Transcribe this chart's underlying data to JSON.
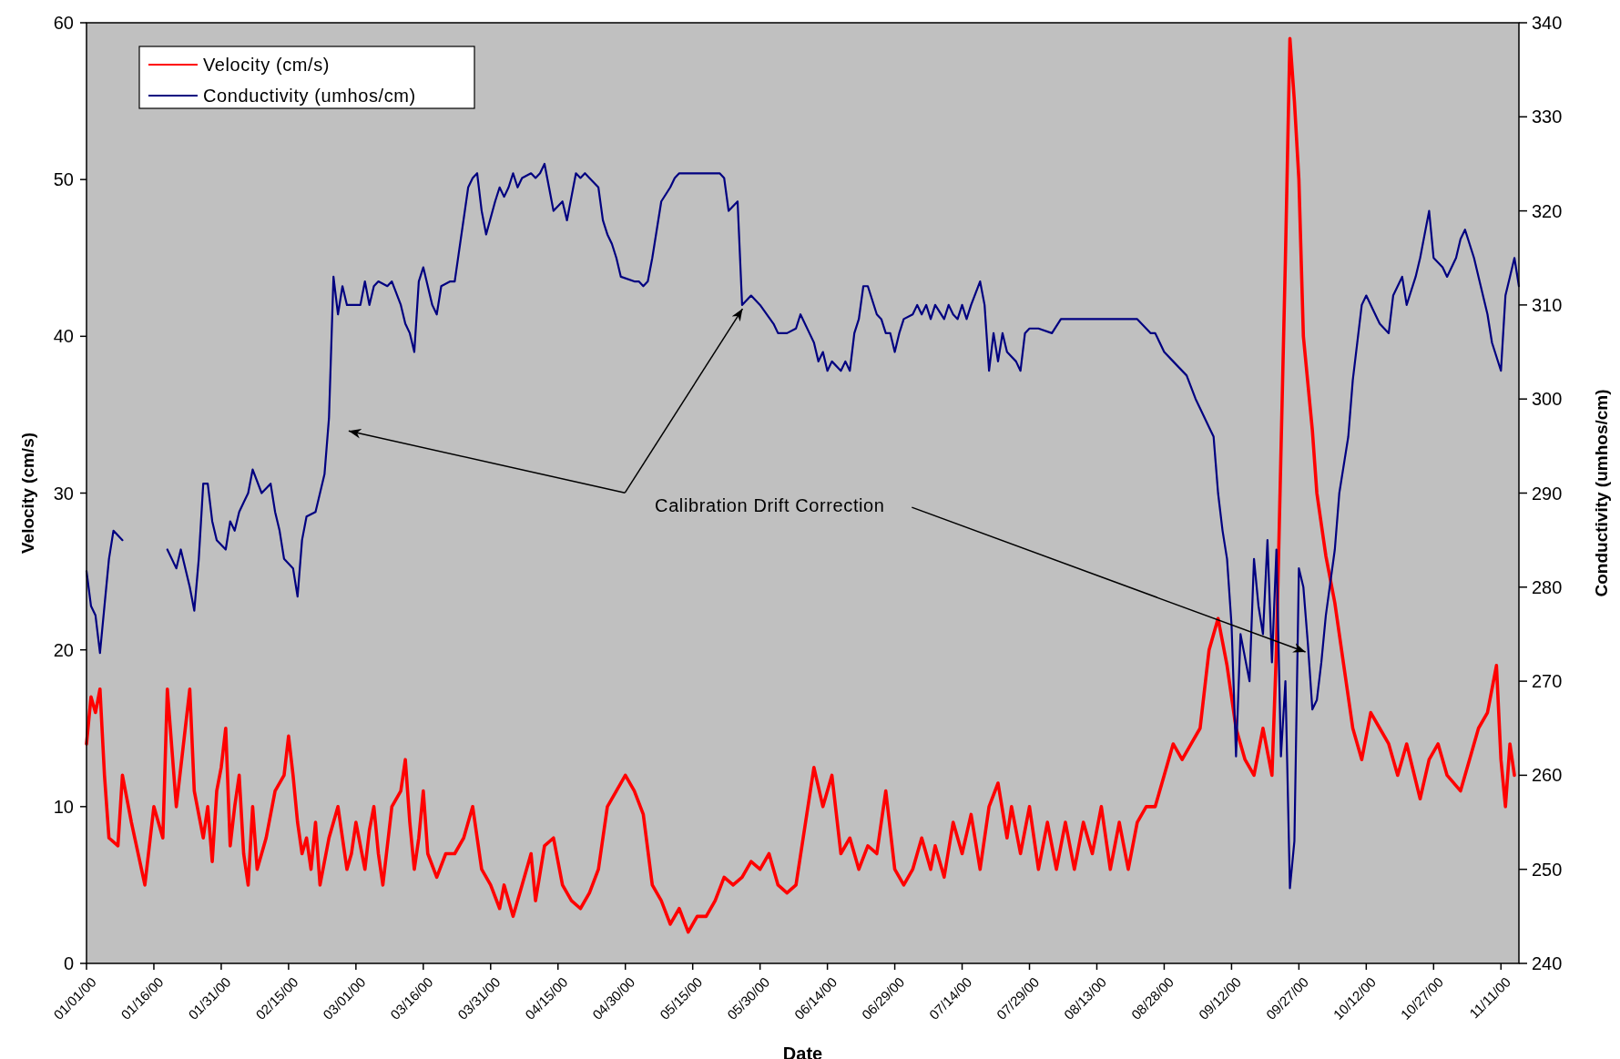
{
  "chart_data": {
    "type": "line",
    "xlabel": "Date",
    "ylabel": "Velocity (cm/s)",
    "y2label": "Conductivity (umhos/cm)",
    "annotations": [
      "Calibration Drift Correction"
    ],
    "legend": "top left",
    "grid": false,
    "marker": "none",
    "line_style": "solid",
    "xlim": [
      "2000-01-01",
      "2000-11-15"
    ],
    "xticks": [
      {
        "value": "2000-01-01",
        "label": "01/01/00"
      },
      {
        "value": "2000-01-16",
        "label": "01/16/00"
      },
      {
        "value": "2000-01-31",
        "label": "01/31/00"
      },
      {
        "value": "2000-02-15",
        "label": "02/15/00"
      },
      {
        "value": "2000-03-01",
        "label": "03/01/00"
      },
      {
        "value": "2000-03-16",
        "label": "03/16/00"
      },
      {
        "value": "2000-03-31",
        "label": "03/31/00"
      },
      {
        "value": "2000-04-15",
        "label": "04/15/00"
      },
      {
        "value": "2000-04-30",
        "label": "04/30/00"
      },
      {
        "value": "2000-05-15",
        "label": "05/15/00"
      },
      {
        "value": "2000-05-30",
        "label": "05/30/00"
      },
      {
        "value": "2000-06-14",
        "label": "06/14/00"
      },
      {
        "value": "2000-06-29",
        "label": "06/29/00"
      },
      {
        "value": "2000-07-14",
        "label": "07/14/00"
      },
      {
        "value": "2000-07-29",
        "label": "07/29/00"
      },
      {
        "value": "2000-08-13",
        "label": "08/13/00"
      },
      {
        "value": "2000-08-28",
        "label": "08/28/00"
      },
      {
        "value": "2000-09-12",
        "label": "09/12/00"
      },
      {
        "value": "2000-09-27",
        "label": "09/27/00"
      },
      {
        "value": "2000-10-12",
        "label": "10/12/00"
      },
      {
        "value": "2000-10-27",
        "label": "10/27/00"
      },
      {
        "value": "2000-11-11",
        "label": "11/11/00"
      }
    ],
    "ylim": [
      0,
      60
    ],
    "yticks": [
      0,
      10,
      20,
      30,
      40,
      50,
      60
    ],
    "y2lim": [
      240,
      340
    ],
    "y2ticks": [
      240,
      250,
      260,
      270,
      280,
      290,
      300,
      310,
      320,
      330,
      340
    ],
    "series": [
      {
        "name": "Velocity (cm/s)",
        "color": "#ff0000",
        "x": [
          "2000-01-01",
          "2000-01-02",
          "2000-01-03",
          "2000-01-04",
          "2000-01-05",
          "2000-01-06",
          "2000-01-08",
          "2000-01-09",
          "2000-01-11",
          "2000-01-14",
          "2000-01-16",
          "2000-01-18",
          "2000-01-19",
          "2000-01-21",
          "2000-01-23",
          "2000-01-24",
          "2000-01-25",
          "2000-01-27",
          "2000-01-28",
          "2000-01-29",
          "2000-01-30",
          "2000-01-31",
          "2000-02-01",
          "2000-02-02",
          "2000-02-03",
          "2000-02-04",
          "2000-02-05",
          "2000-02-06",
          "2000-02-07",
          "2000-02-08",
          "2000-02-10",
          "2000-02-12",
          "2000-02-14",
          "2000-02-15",
          "2000-02-16",
          "2000-02-17",
          "2000-02-18",
          "2000-02-19",
          "2000-02-20",
          "2000-02-21",
          "2000-02-22",
          "2000-02-24",
          "2000-02-26",
          "2000-02-28",
          "2000-02-29",
          "2000-03-01",
          "2000-03-03",
          "2000-03-04",
          "2000-03-05",
          "2000-03-06",
          "2000-03-07",
          "2000-03-09",
          "2000-03-11",
          "2000-03-12",
          "2000-03-13",
          "2000-03-14",
          "2000-03-15",
          "2000-03-16",
          "2000-03-17",
          "2000-03-19",
          "2000-03-21",
          "2000-03-23",
          "2000-03-25",
          "2000-03-27",
          "2000-03-28",
          "2000-03-29",
          "2000-03-31",
          "2000-04-02",
          "2000-04-03",
          "2000-04-05",
          "2000-04-07",
          "2000-04-09",
          "2000-04-10",
          "2000-04-12",
          "2000-04-14",
          "2000-04-16",
          "2000-04-18",
          "2000-04-20",
          "2000-04-22",
          "2000-04-24",
          "2000-04-26",
          "2000-04-28",
          "2000-04-30",
          "2000-05-02",
          "2000-05-04",
          "2000-05-06",
          "2000-05-08",
          "2000-05-10",
          "2000-05-12",
          "2000-05-14",
          "2000-05-16",
          "2000-05-18",
          "2000-05-20",
          "2000-05-22",
          "2000-05-24",
          "2000-05-26",
          "2000-05-28",
          "2000-05-30",
          "2000-06-01",
          "2000-06-03",
          "2000-06-05",
          "2000-06-07",
          "2000-06-11",
          "2000-06-13",
          "2000-06-15",
          "2000-06-17",
          "2000-06-19",
          "2000-06-21",
          "2000-06-23",
          "2000-06-25",
          "2000-06-27",
          "2000-06-29",
          "2000-07-01",
          "2000-07-03",
          "2000-07-05",
          "2000-07-07",
          "2000-07-08",
          "2000-07-10",
          "2000-07-12",
          "2000-07-14",
          "2000-07-16",
          "2000-07-18",
          "2000-07-20",
          "2000-07-22",
          "2000-07-24",
          "2000-07-25",
          "2000-07-27",
          "2000-07-29",
          "2000-07-31",
          "2000-08-02",
          "2000-08-04",
          "2000-08-06",
          "2000-08-08",
          "2000-08-10",
          "2000-08-12",
          "2000-08-14",
          "2000-08-16",
          "2000-08-18",
          "2000-08-20",
          "2000-08-22",
          "2000-08-24",
          "2000-08-26",
          "2000-08-28",
          "2000-08-30",
          "2000-09-01",
          "2000-09-03",
          "2000-09-05",
          "2000-09-07",
          "2000-09-09",
          "2000-09-11",
          "2000-09-13",
          "2000-09-15",
          "2000-09-17",
          "2000-09-19",
          "2000-09-21",
          "2000-09-22",
          "2000-09-24",
          "2000-09-25",
          "2000-09-26",
          "2000-09-27",
          "2000-09-28",
          "2000-09-30",
          "2000-10-01",
          "2000-10-03",
          "2000-10-05",
          "2000-10-07",
          "2000-10-09",
          "2000-10-11",
          "2000-10-13",
          "2000-10-15",
          "2000-10-17",
          "2000-10-19",
          "2000-10-21",
          "2000-10-24",
          "2000-10-26",
          "2000-10-28",
          "2000-10-30",
          "2000-11-02",
          "2000-11-04",
          "2000-11-06",
          "2000-11-08",
          "2000-11-10",
          "2000-11-11",
          "2000-11-12",
          "2000-11-13",
          "2000-11-14"
        ],
        "values": [
          14,
          17,
          16,
          17.5,
          12,
          8,
          7.5,
          12,
          9,
          5,
          10,
          8,
          17.5,
          10,
          15,
          17.5,
          11,
          8,
          10,
          6.5,
          11,
          12.5,
          15,
          7.5,
          10,
          12,
          7,
          5,
          10,
          6,
          8,
          11,
          12,
          14.5,
          12,
          9,
          7,
          8,
          6,
          9,
          5,
          8,
          10,
          6,
          7,
          9,
          6,
          8.5,
          10,
          7,
          5,
          10,
          11,
          13,
          9,
          6,
          8,
          11,
          7,
          5.5,
          7,
          7,
          8,
          10,
          8,
          6,
          5,
          3.5,
          5,
          3,
          5,
          7,
          4,
          7.5,
          8,
          5,
          4,
          3.5,
          4.5,
          6,
          10,
          11,
          12,
          11,
          9.5,
          5,
          4,
          2.5,
          3.5,
          2,
          3,
          3,
          4,
          5.5,
          5,
          5.5,
          6.5,
          6,
          7,
          5,
          4.5,
          5,
          12.5,
          10,
          12,
          7,
          8,
          6,
          7.5,
          7,
          11,
          6,
          5,
          6,
          8,
          6,
          7.5,
          5.5,
          9,
          7,
          9.5,
          6,
          10,
          11.5,
          8,
          10,
          7,
          10,
          6,
          9,
          6,
          9,
          6,
          9,
          7,
          10,
          6,
          9,
          6,
          9,
          10,
          10,
          12,
          14,
          13,
          14,
          15,
          20,
          22,
          19,
          15,
          13,
          12,
          15,
          12,
          20,
          45,
          59,
          55,
          50,
          40,
          34,
          30,
          26,
          23,
          19,
          15,
          13,
          16,
          15,
          14,
          12,
          14,
          10.5,
          13,
          14,
          12,
          11,
          13,
          15,
          16,
          19,
          13,
          10,
          14,
          12
        ]
      },
      {
        "name": "Conductivity (umhos/cm)",
        "color": "#000080",
        "axis": "y2",
        "x": [
          "2000-01-01",
          "2000-01-02",
          "2000-01-03",
          "2000-01-04",
          "2000-01-05",
          "2000-01-06",
          "2000-01-07",
          "2000-01-09",
          "2000-01-13",
          "2000-01-19",
          "2000-01-21",
          "2000-01-22",
          "2000-01-24",
          "2000-01-25",
          "2000-01-26",
          "2000-01-27",
          "2000-01-28",
          "2000-01-29",
          "2000-01-30",
          "2000-02-01",
          "2000-02-02",
          "2000-02-03",
          "2000-02-04",
          "2000-02-05",
          "2000-02-06",
          "2000-02-07",
          "2000-02-09",
          "2000-02-11",
          "2000-02-12",
          "2000-02-13",
          "2000-02-14",
          "2000-02-16",
          "2000-02-17",
          "2000-02-18",
          "2000-02-19",
          "2000-02-21",
          "2000-02-22",
          "2000-02-23",
          "2000-02-24",
          "2000-02-25",
          "2000-02-26",
          "2000-02-27",
          "2000-02-28",
          "2000-03-02",
          "2000-03-03",
          "2000-03-04",
          "2000-03-05",
          "2000-03-06",
          "2000-03-08",
          "2000-03-09",
          "2000-03-11",
          "2000-03-12",
          "2000-03-13",
          "2000-03-14",
          "2000-03-15",
          "2000-03-16",
          "2000-03-18",
          "2000-03-19",
          "2000-03-20",
          "2000-03-22",
          "2000-03-23",
          "2000-03-26",
          "2000-03-27",
          "2000-03-28",
          "2000-03-29",
          "2000-03-30",
          "2000-04-01",
          "2000-04-02",
          "2000-04-03",
          "2000-04-04",
          "2000-04-05",
          "2000-04-06",
          "2000-04-07",
          "2000-04-09",
          "2000-04-10",
          "2000-04-11",
          "2000-04-12",
          "2000-04-13",
          "2000-04-14",
          "2000-04-16",
          "2000-04-17",
          "2000-04-18",
          "2000-04-19",
          "2000-04-20",
          "2000-04-21",
          "2000-04-22",
          "2000-04-24",
          "2000-04-25",
          "2000-04-26",
          "2000-04-27",
          "2000-04-28",
          "2000-04-29",
          "2000-05-02",
          "2000-05-03",
          "2000-05-04",
          "2000-05-05",
          "2000-05-06",
          "2000-05-07",
          "2000-05-08",
          "2000-05-10",
          "2000-05-11",
          "2000-05-12",
          "2000-05-14",
          "2000-05-16",
          "2000-05-19",
          "2000-05-21",
          "2000-05-22",
          "2000-05-23",
          "2000-05-25",
          "2000-05-26",
          "2000-05-28",
          "2000-05-30",
          "2000-06-02",
          "2000-06-03",
          "2000-06-05",
          "2000-06-07",
          "2000-06-08",
          "2000-06-10",
          "2000-06-11",
          "2000-06-12",
          "2000-06-13",
          "2000-06-14",
          "2000-06-15",
          "2000-06-17",
          "2000-06-18",
          "2000-06-19",
          "2000-06-20",
          "2000-06-21",
          "2000-06-22",
          "2000-06-23",
          "2000-06-25",
          "2000-06-26",
          "2000-06-27",
          "2000-06-28",
          "2000-06-29",
          "2000-06-30",
          "2000-07-01",
          "2000-07-03",
          "2000-07-04",
          "2000-07-05",
          "2000-07-06",
          "2000-07-07",
          "2000-07-08",
          "2000-07-10",
          "2000-07-11",
          "2000-07-12",
          "2000-07-13",
          "2000-07-14",
          "2000-07-15",
          "2000-07-16",
          "2000-07-18",
          "2000-07-19",
          "2000-07-20",
          "2000-07-21",
          "2000-07-22",
          "2000-07-23",
          "2000-07-24",
          "2000-07-26",
          "2000-07-27",
          "2000-07-28",
          "2000-07-29",
          "2000-07-31",
          "2000-08-03",
          "2000-08-05",
          "2000-08-08",
          "2000-08-11",
          "2000-08-13",
          "2000-08-15",
          "2000-08-18",
          "2000-08-20",
          "2000-08-22",
          "2000-08-25",
          "2000-08-26",
          "2000-08-28",
          "2000-08-30",
          "2000-09-02",
          "2000-09-04",
          "2000-09-05",
          "2000-09-07",
          "2000-09-08",
          "2000-09-09",
          "2000-09-10",
          "2000-09-11",
          "2000-09-12",
          "2000-09-13",
          "2000-09-14",
          "2000-09-16",
          "2000-09-17",
          "2000-09-18",
          "2000-09-19",
          "2000-09-20",
          "2000-09-21",
          "2000-09-22",
          "2000-09-23",
          "2000-09-24",
          "2000-09-25",
          "2000-09-26",
          "2000-09-27",
          "2000-09-28",
          "2000-09-29",
          "2000-09-30",
          "2000-10-01",
          "2000-10-02",
          "2000-10-03",
          "2000-10-05",
          "2000-10-06",
          "2000-10-08",
          "2000-10-09",
          "2000-10-11",
          "2000-10-12",
          "2000-10-14",
          "2000-10-15",
          "2000-10-17",
          "2000-10-18",
          "2000-10-20",
          "2000-10-21",
          "2000-10-23",
          "2000-10-24",
          "2000-10-26",
          "2000-10-27",
          "2000-10-29",
          "2000-10-30",
          "2000-11-01",
          "2000-11-02",
          "2000-11-03",
          "2000-11-05",
          "2000-11-06",
          "2000-11-08",
          "2000-11-09",
          "2000-11-11",
          "2000-11-12",
          "2000-11-13",
          "2000-11-14",
          "2000-11-15"
        ],
        "values": [
          281.7,
          278,
          277,
          273,
          278,
          283,
          286,
          285,
          null,
          284,
          282,
          284,
          280,
          277.5,
          283,
          291,
          291,
          287,
          285,
          284,
          287,
          286,
          288,
          289,
          290,
          292.5,
          290,
          291,
          288,
          286,
          283,
          282,
          279,
          285,
          287.5,
          288,
          290,
          292,
          298,
          313,
          309,
          312,
          310,
          310,
          312.5,
          310,
          312,
          312.5,
          312,
          312.5,
          310,
          308,
          307,
          305,
          312.5,
          314,
          310,
          309,
          312,
          312.5,
          312.5,
          322.5,
          323.5,
          324,
          320,
          317.5,
          321,
          322.5,
          321.5,
          322.5,
          324,
          322.5,
          323.5,
          324,
          323.5,
          324,
          325,
          322.5,
          320,
          321,
          319,
          321.5,
          324,
          323.5,
          324,
          323.5,
          322.5,
          319,
          317.5,
          316.5,
          315,
          313,
          312.5,
          312.5,
          312,
          312.5,
          315,
          318,
          321,
          322.5,
          323.5,
          324,
          324,
          324,
          324,
          324,
          323.5,
          320,
          321,
          310,
          311,
          310,
          308,
          307,
          307,
          307.5,
          309,
          307,
          306,
          304,
          305,
          303,
          304,
          303,
          304,
          303,
          307,
          308.5,
          312,
          312,
          309,
          308.5,
          307,
          307,
          305,
          307,
          308.5,
          309,
          310,
          309,
          310,
          308.5,
          310,
          308.5,
          310,
          309,
          308.5,
          310,
          308.5,
          310,
          312.5,
          310,
          303,
          307,
          304,
          307,
          305,
          304,
          303,
          307,
          307.5,
          307.5,
          307,
          308.5,
          308.5,
          308.5,
          308.5,
          308.5,
          308.5,
          308.5,
          308.5,
          307,
          307,
          305,
          304,
          302.5,
          300,
          299,
          297,
          296,
          290,
          286,
          283,
          276,
          262,
          275,
          270,
          283,
          278,
          275,
          285,
          272,
          284,
          262,
          270,
          248,
          253,
          282,
          280,
          274,
          267,
          268,
          272,
          277,
          284,
          290,
          296,
          302,
          310,
          311,
          309,
          308,
          307,
          311,
          313,
          310,
          313,
          315,
          320,
          315,
          314,
          313,
          315,
          317,
          318,
          315,
          313,
          309,
          306,
          303,
          311,
          313,
          315,
          312
        ]
      }
    ]
  }
}
